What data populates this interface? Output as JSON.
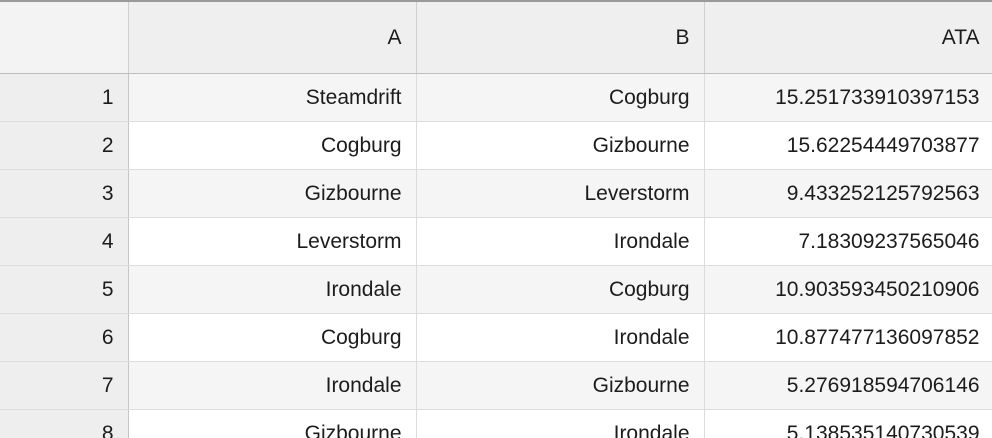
{
  "columns": [
    "",
    "A",
    "B",
    "ATA"
  ],
  "rows": [
    {
      "index": "1",
      "A": "Steamdrift",
      "B": "Cogburg",
      "ATA": "15.251733910397153"
    },
    {
      "index": "2",
      "A": "Cogburg",
      "B": "Gizbourne",
      "ATA": "15.62254449703877"
    },
    {
      "index": "3",
      "A": "Gizbourne",
      "B": "Leverstorm",
      "ATA": "9.433252125792563"
    },
    {
      "index": "4",
      "A": "Leverstorm",
      "B": "Irondale",
      "ATA": "7.18309237565046"
    },
    {
      "index": "5",
      "A": "Irondale",
      "B": "Cogburg",
      "ATA": "10.903593450210906"
    },
    {
      "index": "6",
      "A": "Cogburg",
      "B": "Irondale",
      "ATA": "10.877477136097852"
    },
    {
      "index": "7",
      "A": "Irondale",
      "B": "Gizbourne",
      "ATA": "5.276918594706146"
    },
    {
      "index": "8",
      "A": "Gizbourne",
      "B": "Irondale",
      "ATA": "5.138535140730539"
    }
  ]
}
